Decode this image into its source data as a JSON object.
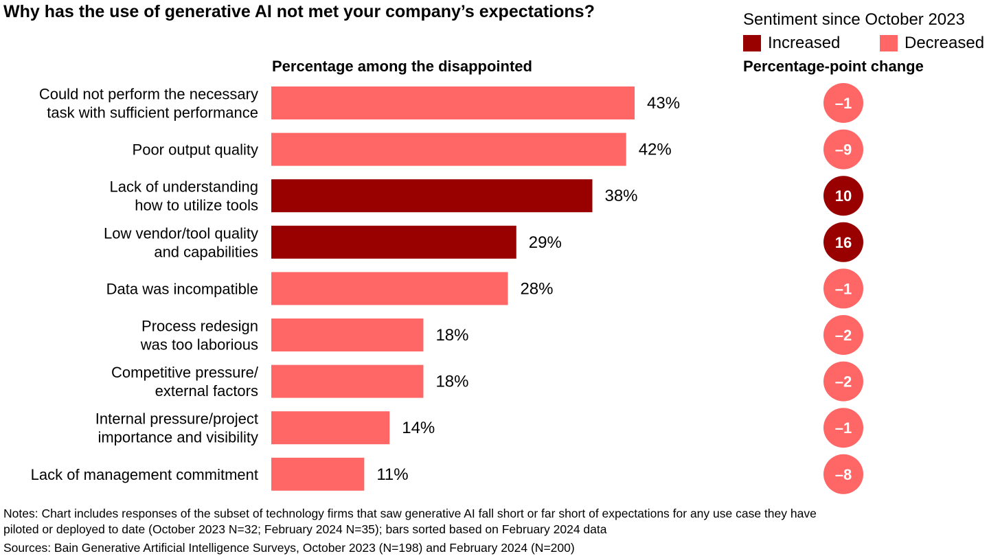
{
  "title": "Why has the use of generative AI not met your company’s expectations?",
  "legend": {
    "title": "Sentiment since October 2023",
    "items": [
      {
        "label": "Increased",
        "color": "#990000"
      },
      {
        "label": "Decreased",
        "color": "#ff6666"
      }
    ]
  },
  "bar_header": "Percentage among the disappointed",
  "change_header": "Percentage-point change",
  "chart_data": {
    "type": "bar",
    "orientation": "horizontal",
    "title": "Why has the use of generative AI not met your company’s expectations?",
    "xlabel": "Percentage among the disappointed",
    "xlim": [
      0,
      43
    ],
    "categories": [
      [
        "Could not perform the necessary",
        "task with sufficient performance"
      ],
      [
        "Poor output quality"
      ],
      [
        "Lack of understanding",
        "how to utilize tools"
      ],
      [
        "Low vendor/tool quality",
        "and capabilities"
      ],
      [
        "Data was incompatible"
      ],
      [
        "Process redesign",
        "was too laborious"
      ],
      [
        "Competitive pressure/",
        "external factors"
      ],
      [
        "Internal pressure/project",
        "importance and visibility"
      ],
      [
        "Lack of management commitment"
      ]
    ],
    "values": [
      43,
      42,
      38,
      29,
      28,
      18,
      18,
      14,
      11
    ],
    "value_labels": [
      "43%",
      "42%",
      "38%",
      "29%",
      "28%",
      "18%",
      "18%",
      "14%",
      "11%"
    ],
    "sentiment": [
      "Decreased",
      "Decreased",
      "Increased",
      "Increased",
      "Decreased",
      "Decreased",
      "Decreased",
      "Decreased",
      "Decreased"
    ],
    "change_values": [
      -1,
      -9,
      10,
      16,
      -1,
      -2,
      -2,
      -1,
      -8
    ],
    "change_labels": [
      "–1",
      "–9",
      "10",
      "16",
      "–1",
      "–2",
      "–2",
      "–1",
      "–8"
    ],
    "colors": {
      "Increased": "#990000",
      "Decreased": "#ff6666"
    }
  },
  "notes": "Notes: Chart includes responses of the subset of technology firms that saw generative AI fall short or far short of expectations for any use case they have piloted or deployed to date (October 2023 N=32; February 2024 N=35); bars sorted based on February 2024 data",
  "sources": "Sources: Bain Generative Artificial Intelligence Surveys, October 2023 (N=198) and February 2024 (N=200)"
}
